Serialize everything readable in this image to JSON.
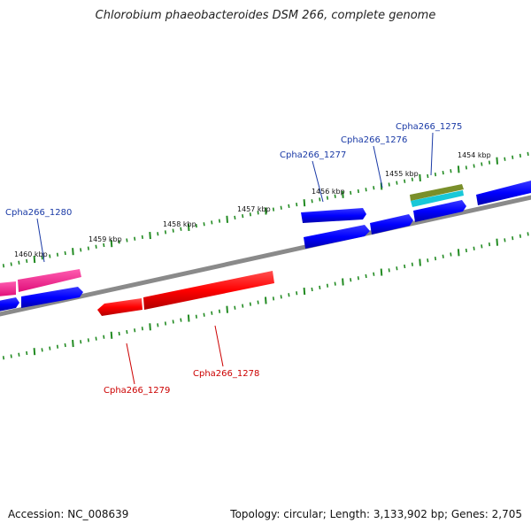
{
  "title": "Chlorobium phaeobacteroides DSM 266, complete genome",
  "footer": {
    "accession_label": "Accession:",
    "accession": "NC_008639",
    "topology_label": "Topology:",
    "topology": "circular",
    "length_label": "Length:",
    "length": "3,133,902 bp",
    "genes_label": "Genes:",
    "genes": "2,705"
  },
  "colors": {
    "forward_gene": "#0000ff",
    "reverse_gene": "#ff0000",
    "pink_gene": "#ff1493",
    "olive_gene": "#6b8e23",
    "cyan_gene": "#00ced1",
    "backbone": "#808080",
    "tick": "#228b22",
    "label_forward": "#0000aa",
    "label_reverse": "#cc0000"
  },
  "scale_labels": [
    "1454 kbp",
    "1455 kbp",
    "1456 kbp",
    "1457 kbp",
    "1458 kbp",
    "1459 kbp",
    "1460 kbp"
  ],
  "gene_labels": [
    {
      "text": "Cpha266_1275",
      "strand": "forward"
    },
    {
      "text": "Cpha266_1276",
      "strand": "forward"
    },
    {
      "text": "Cpha266_1277",
      "strand": "forward"
    },
    {
      "text": "Cpha266_1280",
      "strand": "forward"
    },
    {
      "text": "Cpha266_1278",
      "strand": "reverse"
    },
    {
      "text": "Cpha266_1279",
      "strand": "reverse"
    }
  ]
}
